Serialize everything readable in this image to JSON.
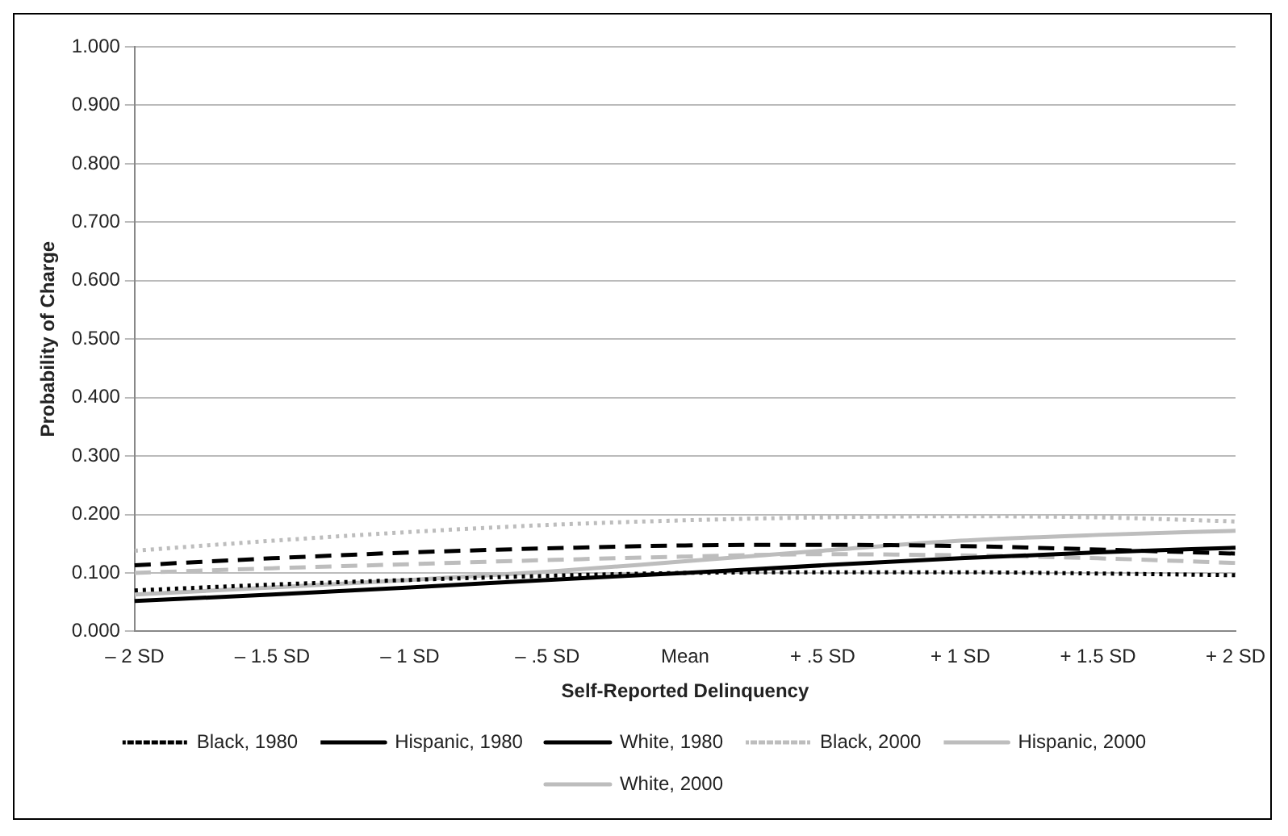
{
  "chart_data": {
    "type": "line",
    "xlabel": "Self-Reported Delinquency",
    "ylabel": "Probability of Charge",
    "categories": [
      "– 2 SD",
      "– 1.5 SD",
      "– 1 SD",
      "– .5 SD",
      "Mean",
      "+ .5 SD",
      "+ 1 SD",
      "+ 1.5 SD",
      "+ 2 SD"
    ],
    "ylim": [
      0,
      1
    ],
    "yticks": [
      {
        "value": 0,
        "label": "0.000"
      },
      {
        "value": 0.1,
        "label": "0.100"
      },
      {
        "value": 0.2,
        "label": "0.200"
      },
      {
        "value": 0.3,
        "label": "0.300"
      },
      {
        "value": 0.4,
        "label": "0.400"
      },
      {
        "value": 0.5,
        "label": "0.500"
      },
      {
        "value": 0.6,
        "label": "0.600"
      },
      {
        "value": 0.7,
        "label": "0.700"
      },
      {
        "value": 0.8,
        "label": "0.800"
      },
      {
        "value": 0.9,
        "label": "0.900"
      },
      {
        "value": 1,
        "label": "1.000"
      }
    ],
    "grid": "y",
    "legend": "bottom",
    "marker": "none",
    "series": [
      {
        "name": "Black, 1980",
        "color": "#000000",
        "line_style": "dotted",
        "values": [
          0.07,
          0.08,
          0.088,
          0.095,
          0.1,
          0.101,
          0.101,
          0.099,
          0.096
        ]
      },
      {
        "name": "Hispanic, 1980",
        "color": "#000000",
        "line_style": "dashed",
        "values": [
          0.113,
          0.125,
          0.135,
          0.142,
          0.147,
          0.148,
          0.146,
          0.14,
          0.133
        ]
      },
      {
        "name": "White, 1980",
        "color": "#000000",
        "line_style": "solid",
        "values": [
          0.052,
          0.063,
          0.075,
          0.088,
          0.1,
          0.113,
          0.125,
          0.135,
          0.143
        ]
      },
      {
        "name": "Black, 2000",
        "color": "#bdbdbd",
        "line_style": "dotted",
        "values": [
          0.138,
          0.155,
          0.17,
          0.182,
          0.19,
          0.195,
          0.197,
          0.195,
          0.188
        ]
      },
      {
        "name": "Hispanic, 2000",
        "color": "#bdbdbd",
        "line_style": "dashed",
        "values": [
          0.1,
          0.108,
          0.115,
          0.122,
          0.128,
          0.132,
          0.13,
          0.125,
          0.117
        ]
      },
      {
        "name": "White, 2000",
        "color": "#bdbdbd",
        "line_style": "solid",
        "values": [
          0.063,
          0.075,
          0.088,
          0.102,
          0.12,
          0.138,
          0.155,
          0.165,
          0.172
        ]
      }
    ]
  }
}
